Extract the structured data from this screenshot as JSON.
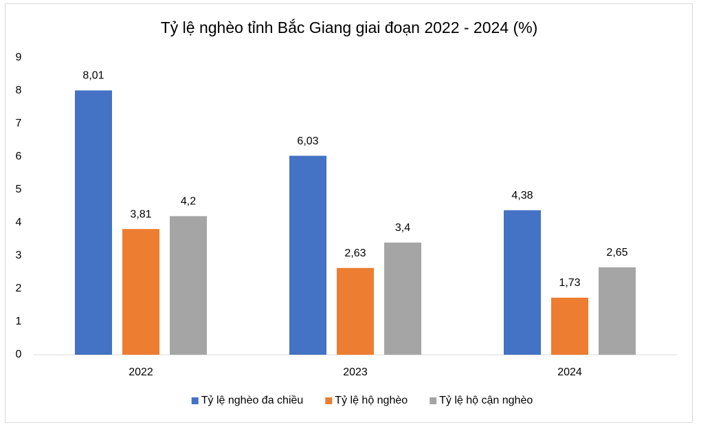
{
  "chart_data": {
    "type": "bar",
    "title": "Tỷ lệ nghèo tỉnh Bắc Giang giai đoạn 2022 - 2024 (%)",
    "categories": [
      "2022",
      "2023",
      "2024"
    ],
    "series": [
      {
        "name": "Tỷ lệ nghèo đa chiều",
        "color": "#4472c4",
        "values": [
          8.01,
          6.03,
          4.38
        ],
        "value_labels": [
          "8,01",
          "6,03",
          "4,38"
        ]
      },
      {
        "name": "Tỷ lệ hộ nghèo",
        "color": "#ed7d31",
        "values": [
          3.81,
          2.63,
          1.73
        ],
        "value_labels": [
          "3,81",
          "2,63",
          "1,73"
        ]
      },
      {
        "name": "Tỷ lệ hộ cận nghèo",
        "color": "#a5a5a5",
        "values": [
          4.2,
          3.4,
          2.65
        ],
        "value_labels": [
          "4,2",
          "3,4",
          "2,65"
        ]
      }
    ],
    "ylim": [
      0,
      9
    ],
    "yticks": [
      0,
      1,
      2,
      3,
      4,
      5,
      6,
      7,
      8,
      9
    ],
    "grid": false,
    "legend": "bottom"
  }
}
